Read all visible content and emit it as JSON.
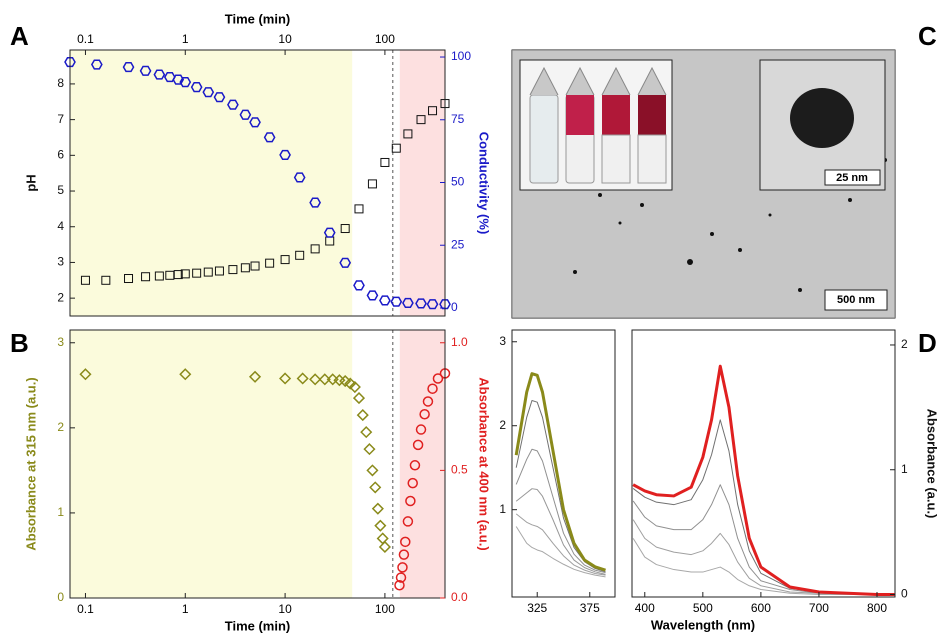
{
  "panel_labels": [
    "A",
    "B",
    "C",
    "D"
  ],
  "image_panel": {
    "scale_bar_main": "500 nm",
    "scale_bar_inset": "25 nm"
  },
  "chart_data": [
    {
      "type": "scatter",
      "xscale": "log",
      "xaxis": "top",
      "xlabel": "Time (min)",
      "ylabel": "pH",
      "y2label": "Conductivity (%)",
      "ycolor": "#111111",
      "y2color": "#1a1ac8",
      "xlim": [
        0.07,
        400
      ],
      "xticks": [
        0.1,
        1,
        10,
        100
      ],
      "ylim": [
        1.5,
        8.95
      ],
      "yticks": [
        2,
        3,
        4,
        5,
        6,
        7,
        8
      ],
      "y2lim": [
        -3.2,
        102.8
      ],
      "y2ticks": [
        0,
        25,
        50,
        75,
        100
      ],
      "regions": [
        {
          "x": [
            0.07,
            47
          ],
          "color": "#fbfbdc"
        },
        {
          "x": [
            141,
            400
          ],
          "color": "#fde0e0"
        }
      ],
      "vline": 120,
      "series": [
        {
          "marker": "square",
          "color": "#111111",
          "x": [
            0.1,
            0.16,
            0.27,
            0.4,
            0.55,
            0.7,
            0.85,
            1,
            1.3,
            1.7,
            2.2,
            3,
            4,
            5,
            7,
            10,
            14,
            20,
            28,
            40,
            55,
            75,
            100,
            130,
            170,
            230,
            300,
            400
          ],
          "values": [
            2.5,
            2.5,
            2.55,
            2.6,
            2.62,
            2.64,
            2.66,
            2.68,
            2.7,
            2.73,
            2.76,
            2.8,
            2.85,
            2.9,
            2.98,
            3.08,
            3.2,
            3.38,
            3.6,
            3.95,
            4.5,
            5.2,
            5.8,
            6.2,
            6.6,
            7.0,
            7.25,
            7.45
          ]
        },
        {
          "marker": "hexagon",
          "color": "#1a1ac8",
          "axis": "y2",
          "x": [
            0.07,
            0.13,
            0.27,
            0.4,
            0.55,
            0.7,
            0.85,
            1,
            1.3,
            1.7,
            2.2,
            3,
            4,
            5,
            7,
            10,
            14,
            20,
            28,
            40,
            55,
            75,
            100,
            130,
            170,
            230,
            300,
            400
          ],
          "values": [
            98,
            97,
            96,
            94.5,
            93,
            92,
            91,
            90,
            88,
            86,
            84,
            81,
            77,
            74,
            68,
            61,
            52,
            42,
            30,
            18,
            9,
            5,
            3,
            2.5,
            2,
            1.8,
            1.5,
            1.5
          ]
        }
      ]
    },
    {
      "type": "scatter",
      "xscale": "log",
      "xaxis": "bottom",
      "xlabel": "Time (min)",
      "ylabel": "Absorbance at 315 nm (a.u.)",
      "y2label": "Absorbance at 400 nm (a.u.)",
      "ycolor": "#8a8a1a",
      "y2color": "#e02020",
      "xlim": [
        0.07,
        400
      ],
      "xticks": [
        0.1,
        1,
        10,
        100
      ],
      "ylim": [
        0,
        3.15
      ],
      "yticks": [
        0,
        1,
        2,
        3
      ],
      "y2lim": [
        0,
        1.05
      ],
      "y2ticks": [
        {
          "value": 0,
          "label": "0.0"
        },
        {
          "value": 0.5,
          "label": "0.5"
        },
        {
          "value": 1,
          "label": "1.0"
        }
      ],
      "regions": [
        {
          "x": [
            0.07,
            47
          ],
          "color": "#fbfbdc"
        },
        {
          "x": [
            141,
            400
          ],
          "color": "#fde0e0"
        }
      ],
      "vline": 120,
      "series": [
        {
          "marker": "diamond",
          "color": "#8a8a1a",
          "x": [
            0.1,
            1,
            5,
            10,
            15,
            20,
            25,
            30,
            35,
            40,
            45,
            50,
            55,
            60,
            65,
            70,
            75,
            80,
            85,
            90,
            95,
            100
          ],
          "values": [
            2.63,
            2.63,
            2.6,
            2.58,
            2.58,
            2.57,
            2.57,
            2.57,
            2.56,
            2.55,
            2.52,
            2.48,
            2.35,
            2.15,
            1.95,
            1.75,
            1.5,
            1.3,
            1.05,
            0.85,
            0.7,
            0.6
          ]
        },
        {
          "marker": "circle",
          "color": "#e02020",
          "axis": "y2",
          "x": [
            140,
            145,
            150,
            155,
            160,
            170,
            180,
            190,
            200,
            215,
            230,
            250,
            270,
            300,
            340,
            400
          ],
          "values": [
            0.05,
            0.08,
            0.12,
            0.17,
            0.22,
            0.3,
            0.38,
            0.45,
            0.52,
            0.6,
            0.66,
            0.72,
            0.77,
            0.82,
            0.86,
            0.88
          ]
        }
      ]
    },
    {
      "type": "line",
      "xscale": "linear",
      "xaxis": "bottom",
      "xlim": [
        301,
        399
      ],
      "xticks": [
        325,
        375
      ],
      "ylim": [
        -0.04,
        3.14
      ],
      "yticks": [
        1,
        2,
        3
      ],
      "ycolor": "#111111",
      "series": [
        {
          "color": "#a8a8a8",
          "line_width": 1,
          "x": [
            305,
            315,
            320,
            325,
            330,
            340,
            350,
            360,
            370,
            380,
            390
          ],
          "values": [
            0.8,
            0.6,
            0.55,
            0.52,
            0.5,
            0.42,
            0.35,
            0.29,
            0.25,
            0.22,
            0.2
          ]
        },
        {
          "color": "#a0a0a0",
          "line_width": 1,
          "x": [
            305,
            315,
            320,
            325,
            330,
            340,
            350,
            360,
            370,
            380,
            390
          ],
          "values": [
            0.95,
            0.85,
            0.82,
            0.8,
            0.76,
            0.6,
            0.45,
            0.34,
            0.28,
            0.24,
            0.22
          ]
        },
        {
          "color": "#989898",
          "line_width": 1,
          "x": [
            305,
            315,
            320,
            325,
            330,
            340,
            350,
            360,
            370,
            380,
            390
          ],
          "values": [
            1.1,
            1.2,
            1.25,
            1.24,
            1.16,
            0.88,
            0.58,
            0.4,
            0.31,
            0.26,
            0.23
          ]
        },
        {
          "color": "#909090",
          "line_width": 1,
          "x": [
            305,
            315,
            320,
            325,
            330,
            340,
            350,
            360,
            370,
            380,
            390
          ],
          "values": [
            1.3,
            1.6,
            1.72,
            1.7,
            1.58,
            1.15,
            0.72,
            0.47,
            0.34,
            0.28,
            0.25
          ]
        },
        {
          "color": "#707070",
          "line_width": 1,
          "x": [
            305,
            315,
            320,
            325,
            330,
            340,
            350,
            360,
            370,
            380,
            390
          ],
          "values": [
            1.5,
            2.1,
            2.3,
            2.28,
            2.1,
            1.5,
            0.9,
            0.55,
            0.38,
            0.3,
            0.26
          ]
        },
        {
          "color": "#8a8a1a",
          "line_width": 3,
          "x": [
            305,
            315,
            320,
            325,
            330,
            340,
            350,
            360,
            370,
            380,
            390
          ],
          "values": [
            1.65,
            2.4,
            2.62,
            2.6,
            2.4,
            1.7,
            1.0,
            0.6,
            0.4,
            0.32,
            0.28
          ]
        }
      ]
    },
    {
      "type": "line",
      "xscale": "linear",
      "xaxis": "bottom",
      "yaxis": "right",
      "xlabel": "Wavelength (nm)",
      "ylabel": "Absorbance (a.u.)",
      "xlim": [
        378,
        831
      ],
      "xticks": [
        400,
        500,
        600,
        700,
        800
      ],
      "ylim": [
        -0.02,
        2.12
      ],
      "yticks": [
        0,
        1,
        2
      ],
      "ycolor": "#111111",
      "series": [
        {
          "color": "#a8a8a8",
          "line_width": 1,
          "x": [
            380,
            400,
            420,
            450,
            480,
            500,
            515,
            530,
            545,
            560,
            580,
            600,
            650,
            700,
            800,
            830
          ],
          "values": [
            0.45,
            0.3,
            0.24,
            0.2,
            0.18,
            0.18,
            0.2,
            0.22,
            0.18,
            0.12,
            0.07,
            0.04,
            0.01,
            0,
            0,
            0
          ]
        },
        {
          "color": "#a0a0a0",
          "line_width": 1,
          "x": [
            380,
            400,
            420,
            450,
            480,
            500,
            515,
            530,
            545,
            560,
            580,
            600,
            650,
            700,
            800,
            830
          ],
          "values": [
            0.6,
            0.45,
            0.38,
            0.34,
            0.32,
            0.35,
            0.41,
            0.49,
            0.4,
            0.26,
            0.13,
            0.07,
            0.02,
            0.01,
            0,
            0
          ]
        },
        {
          "color": "#909090",
          "line_width": 1,
          "x": [
            380,
            400,
            420,
            450,
            480,
            500,
            515,
            530,
            545,
            560,
            580,
            600,
            650,
            700,
            800,
            830
          ],
          "values": [
            0.75,
            0.62,
            0.55,
            0.52,
            0.52,
            0.6,
            0.72,
            0.88,
            0.72,
            0.45,
            0.22,
            0.11,
            0.04,
            0.01,
            0,
            0
          ]
        },
        {
          "color": "#707070",
          "line_width": 1,
          "x": [
            380,
            400,
            420,
            450,
            480,
            500,
            515,
            530,
            545,
            560,
            580,
            600,
            650,
            700,
            800,
            830
          ],
          "values": [
            0.85,
            0.78,
            0.74,
            0.72,
            0.76,
            0.92,
            1.12,
            1.4,
            1.15,
            0.72,
            0.35,
            0.17,
            0.05,
            0.02,
            0,
            0
          ]
        },
        {
          "color": "#e02020",
          "line_width": 3,
          "x": [
            380,
            400,
            420,
            450,
            480,
            500,
            515,
            530,
            545,
            560,
            580,
            600,
            650,
            700,
            800,
            830
          ],
          "values": [
            0.88,
            0.83,
            0.8,
            0.79,
            0.86,
            1.1,
            1.4,
            1.83,
            1.5,
            0.95,
            0.45,
            0.22,
            0.06,
            0.02,
            0,
            0
          ]
        }
      ]
    }
  ]
}
